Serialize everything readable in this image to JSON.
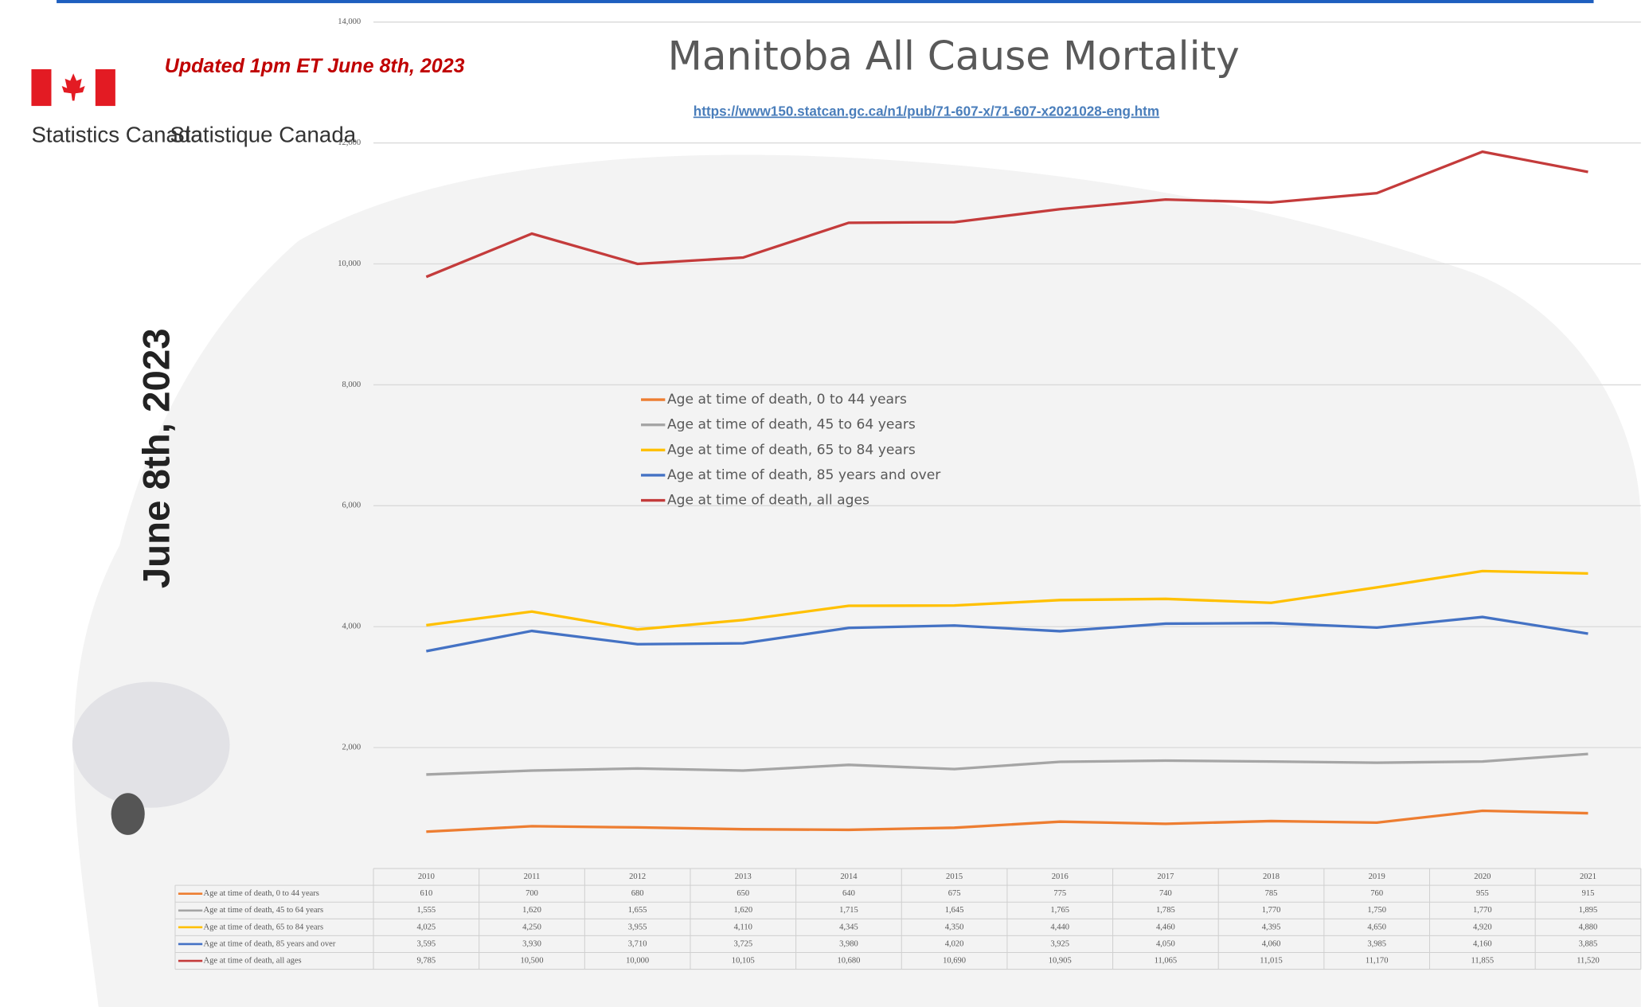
{
  "header": {
    "updated": "Updated 1pm ET June 8th, 2023",
    "agency_en": "Statistics Canada",
    "agency_fr": "Statistique Canada",
    "date_vertical": "June 8th, 2023",
    "source_url": "https://www150.statcan.gc.ca/n1/pub/71-607-x/71-607-x2021028-eng.htm"
  },
  "chart_data": {
    "type": "line",
    "title": "Manitoba All Cause Mortality",
    "categories": [
      "2010",
      "2011",
      "2012",
      "2013",
      "2014",
      "2015",
      "2016",
      "2017",
      "2018",
      "2019",
      "2020",
      "2021"
    ],
    "series": [
      {
        "name": "Age at time of death, 0 to 44 years",
        "color": "#ed7d31",
        "values": [
          610,
          700,
          680,
          650,
          640,
          675,
          775,
          740,
          785,
          760,
          955,
          915
        ],
        "value_labels": [
          "610",
          "700",
          "680",
          "650",
          "640",
          "675",
          "775",
          "740",
          "785",
          "760",
          "955",
          "915"
        ]
      },
      {
        "name": "Age at time of death, 45 to 64 years",
        "color": "#a5a5a5",
        "values": [
          1555,
          1620,
          1655,
          1620,
          1715,
          1645,
          1765,
          1785,
          1770,
          1750,
          1770,
          1895
        ],
        "value_labels": [
          "1,555",
          "1,620",
          "1,655",
          "1,620",
          "1,715",
          "1,645",
          "1,765",
          "1,785",
          "1,770",
          "1,750",
          "1,770",
          "1,895"
        ]
      },
      {
        "name": "Age at time of death, 65 to 84 years",
        "color": "#ffc000",
        "values": [
          4025,
          4250,
          3955,
          4110,
          4345,
          4350,
          4440,
          4460,
          4395,
          4650,
          4920,
          4880
        ],
        "value_labels": [
          "4,025",
          "4,250",
          "3,955",
          "4,110",
          "4,345",
          "4,350",
          "4,440",
          "4,460",
          "4,395",
          "4,650",
          "4,920",
          "4,880"
        ]
      },
      {
        "name": "Age at time of death, 85 years and over",
        "color": "#4472c4",
        "values": [
          3595,
          3930,
          3710,
          3725,
          3980,
          4020,
          3925,
          4050,
          4060,
          3985,
          4160,
          3885
        ],
        "value_labels": [
          "3,595",
          "3,930",
          "3,710",
          "3,725",
          "3,980",
          "4,020",
          "3,925",
          "4,050",
          "4,060",
          "3,985",
          "4,160",
          "3,885"
        ]
      },
      {
        "name": "Age at time of death, all ages",
        "color": "#c43b3b",
        "values": [
          9785,
          10500,
          10000,
          10105,
          10680,
          10690,
          10905,
          11065,
          11015,
          11170,
          11855,
          11520
        ],
        "value_labels": [
          "9,785",
          "10,500",
          "10,000",
          "10,105",
          "10,680",
          "10,690",
          "10,905",
          "11,065",
          "11,015",
          "11,170",
          "11,855",
          "11,520"
        ]
      }
    ],
    "ylim": [
      0,
      14000
    ],
    "yticks": [
      {
        "value": 2000,
        "label": "2,000"
      },
      {
        "value": 4000,
        "label": "4,000"
      },
      {
        "value": 6000,
        "label": "6,000"
      },
      {
        "value": 8000,
        "label": "8,000"
      },
      {
        "value": 10000,
        "label": "10,000"
      },
      {
        "value": 12000,
        "label": "12,000"
      },
      {
        "value": 14000,
        "label": "14,000"
      }
    ],
    "grid": true
  }
}
